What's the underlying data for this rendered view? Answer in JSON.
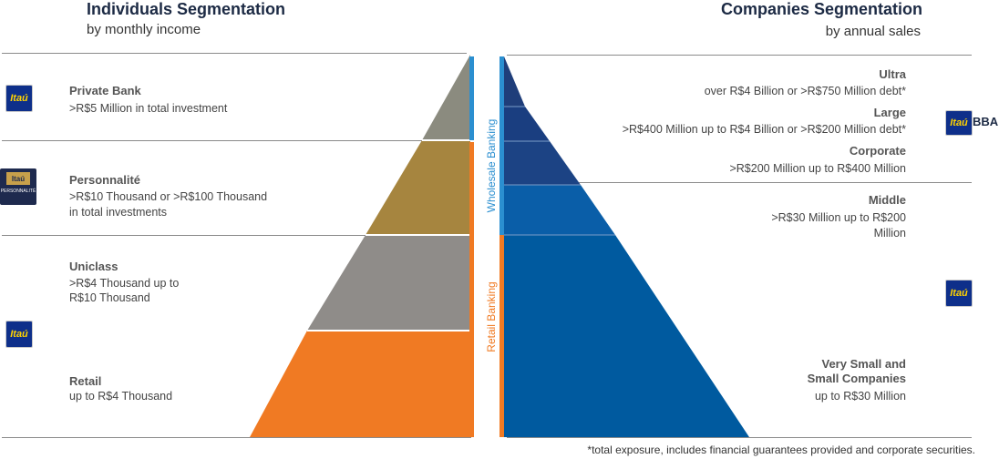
{
  "left": {
    "title": "Individuals Segmentation",
    "subtitle": "by monthly income",
    "segments": [
      {
        "name": "Private Bank",
        "desc1": ">R$5 Million in total investment",
        "desc2": ""
      },
      {
        "name": "Personnalité",
        "desc1": ">R$10 Thousand  or >R$100 Thousand",
        "desc2": "in total investments"
      },
      {
        "name": "Uniclass",
        "desc1": ">R$4 Thousand up to",
        "desc2": "R$10 Thousand"
      },
      {
        "name": "Retail",
        "desc1": "up to R$4 Thousand",
        "desc2": ""
      }
    ],
    "logos": {
      "itau": "Itaú",
      "personnalite_top": "Itaú",
      "personnalite_bottom": "PERSONNALITÉ"
    },
    "colors": [
      "#8b8b7f",
      "#a6853f",
      "#8f8c89",
      "#f07a23"
    ]
  },
  "right": {
    "title": "Companies Segmentation",
    "subtitle": "by annual sales",
    "segments": [
      {
        "name": "Ultra",
        "desc1": "over R$4 Billion or >R$750 Million debt*",
        "desc2": ""
      },
      {
        "name": "Large",
        "desc1": ">R$400 Million up to R$4 Billion or >R$200 Million debt*",
        "desc2": ""
      },
      {
        "name": "Corporate",
        "desc1": ">R$200 Million up to R$400 Million",
        "desc2": ""
      },
      {
        "name": "Middle",
        "desc1": ">R$30 Million up to R$200",
        "desc2": "Million"
      },
      {
        "name1": "Very Small and",
        "name2": "Small Companies",
        "desc1": "up to R$30 Million"
      }
    ],
    "logos": {
      "itau": "Itaú",
      "itau_bba_a": "Itaú",
      "itau_bba_b": "BBA"
    },
    "colors": [
      "#1f3e7a",
      "#1a3e80",
      "#1c4384",
      "#0a5ea8",
      "#005a9f"
    ]
  },
  "center": {
    "wholesale": "Wholesale Banking",
    "retail": "Retail Banking",
    "wholesale_color": "#2b8fd0",
    "retail_color": "#f07a23"
  },
  "footnote": "*total exposure, includes financial guarantees provided and corporate securities."
}
